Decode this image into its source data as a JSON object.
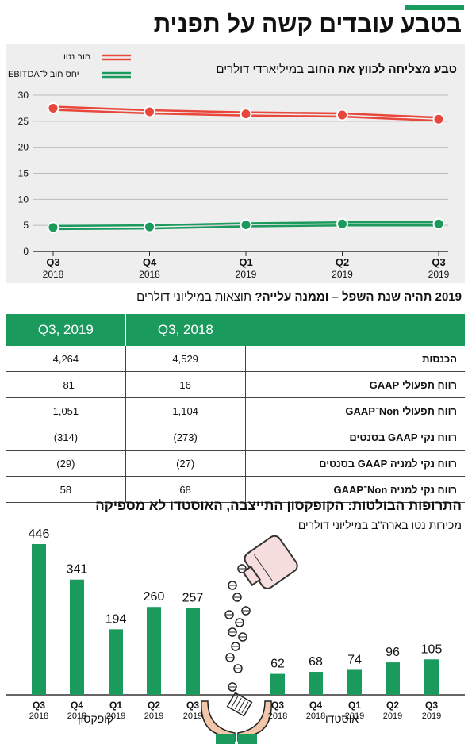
{
  "header": {
    "title": "בטבע עובדים קשה על תפנית"
  },
  "chart1": {
    "title_bold": "טבע מצליחה לכווץ את החוב",
    "title_rest": "במיליארדי דולרים",
    "legend": [
      {
        "label": "חוב נטו",
        "color": "#e8473b"
      },
      {
        "label": "יחס חוב ל־EBITDA",
        "color": "#1a9a5c"
      }
    ]
  },
  "table": {
    "title_bold": "2019 תהיה שנת השפל – וממנה עלייה?",
    "title_rest": "תוצאות במיליוני דולרים",
    "columns": [
      "Q3, 2018",
      "Q3, 2019"
    ],
    "rows": [
      {
        "label": "הכנסות",
        "v2018": "4,529",
        "v2019": "4,264"
      },
      {
        "label": "רווח תפעולי GAAP",
        "v2018": "16",
        "v2019": "81−"
      },
      {
        "label": "רווח תפעולי Non־GAAP",
        "v2018": "1,104",
        "v2019": "1,051"
      },
      {
        "label": "רווח נקי GAAP בסנטים",
        "v2018": "(273)",
        "v2019": "(314)"
      },
      {
        "label": "רווח נקי למניה GAAP בסנטים",
        "v2018": "(27)",
        "v2019": "(29)"
      },
      {
        "label": "רווח נקי למניה Non־GAAP",
        "v2018": "68",
        "v2019": "58"
      }
    ]
  },
  "chart3": {
    "title": "התרופות הבולטות: הקופקסון התייצבה, האוסטדו לא מספיקה",
    "subtitle": "מכירות נטו בארה\"ב במיליוני דולרים",
    "groups": [
      "קופקסון",
      "אוסטדו"
    ]
  },
  "chart_data": [
    {
      "type": "line",
      "title": "טבע מצליחה לכווץ את החוב במיליארדי דולרים",
      "categories": [
        [
          "Q3",
          "2018"
        ],
        [
          "Q4",
          "2018"
        ],
        [
          "Q1",
          "2019"
        ],
        [
          "Q2",
          "2019"
        ],
        [
          "Q3",
          "2019"
        ]
      ],
      "yticks": [
        0,
        5,
        10,
        15,
        20,
        25,
        30
      ],
      "ylim": [
        0,
        30
      ],
      "grid": true,
      "legend_position": "top-left",
      "series": [
        {
          "name": "חוב נטו",
          "values": [
            27.8,
            27.1,
            26.7,
            26.5,
            25.7
          ],
          "color": "#e8473b"
        },
        {
          "name": "יחס חוב ל־EBITDA",
          "values": [
            4.9,
            5.0,
            5.4,
            5.6,
            5.6
          ],
          "color": "#1a9a5c"
        }
      ]
    },
    {
      "type": "bar",
      "title": "התרופות הבולטות: הקופקסון התייצבה, האוסטדו לא מספיקה",
      "ylim": [
        0,
        446
      ],
      "color": "#1a9a5c",
      "series": [
        {
          "name": "קופקסון",
          "categories": [
            [
              "Q3",
              "2018"
            ],
            [
              "Q4",
              "2018"
            ],
            [
              "Q1",
              "2019"
            ],
            [
              "Q2",
              "2019"
            ],
            [
              "Q3",
              "2019"
            ]
          ],
          "values": [
            446,
            341,
            194,
            260,
            257
          ]
        },
        {
          "name": "אוסטדו",
          "categories": [
            [
              "Q3",
              "2018"
            ],
            [
              "Q4",
              "2018"
            ],
            [
              "Q1",
              "2019"
            ],
            [
              "Q2",
              "2019"
            ],
            [
              "Q3",
              "2019"
            ]
          ],
          "values": [
            62,
            68,
            74,
            96,
            105
          ]
        }
      ]
    }
  ]
}
